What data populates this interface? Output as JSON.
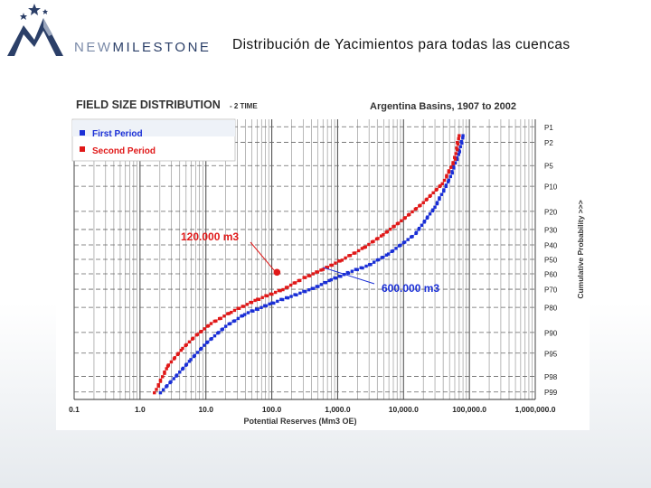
{
  "header": {
    "brand_prefix": "NEW",
    "brand_main": "MILESTONE",
    "slide_title": "Distribución de Yacimientos para todas las cuencas"
  },
  "colors": {
    "first_period": "#1a2fd6",
    "second_period": "#e01818",
    "brand": "#2b3f68"
  },
  "chart_data": {
    "type": "scatter",
    "title": "FIELD SIZE DISTRIBUTION",
    "title_suffix": "- 2 TIME",
    "subtitle": "Argentina Basins, 1907 to 2002",
    "xlabel": "Potential Reserves (Mm3 OE)",
    "ylabel": "Cumulative Probability >>>",
    "x_scale": "log",
    "xlim": [
      0.1,
      1000000
    ],
    "x_tick_labels": [
      "0.1",
      "1.0",
      "10.0",
      "100.0",
      "1,000.0",
      "10,000.0",
      "100,000.0",
      "1,000,000.0"
    ],
    "y_scale": "probability",
    "y_tick_labels": [
      "P1",
      "P2",
      "P5",
      "P10",
      "P20",
      "P30",
      "P40",
      "P50",
      "P60",
      "P70",
      "P80",
      "P90",
      "P95",
      "P98",
      "P99"
    ],
    "y_tick_values": [
      1,
      2,
      5,
      10,
      20,
      30,
      40,
      50,
      60,
      70,
      80,
      90,
      95,
      98,
      99
    ],
    "grid": true,
    "legend_position": "top-left",
    "series": [
      {
        "name": "First Period",
        "points": [
          [
            2.1,
            99
          ],
          [
            3.5,
            98
          ],
          [
            6,
            96
          ],
          [
            10,
            93
          ],
          [
            20,
            88
          ],
          [
            40,
            83
          ],
          [
            100,
            78
          ],
          [
            200,
            74
          ],
          [
            400,
            70
          ],
          [
            800,
            64
          ],
          [
            1500,
            59
          ],
          [
            3000,
            54
          ],
          [
            6000,
            46
          ],
          [
            15000,
            33
          ],
          [
            30000,
            18
          ],
          [
            50000,
            8
          ],
          [
            70000,
            3
          ],
          [
            80000,
            1.5
          ]
        ]
      },
      {
        "name": "Second Period",
        "points": [
          [
            1.7,
            99
          ],
          [
            2.6,
            97
          ],
          [
            4.5,
            94
          ],
          [
            7,
            91
          ],
          [
            12,
            87
          ],
          [
            25,
            82
          ],
          [
            60,
            76
          ],
          [
            150,
            70
          ],
          [
            300,
            63
          ],
          [
            600,
            57
          ],
          [
            1200,
            50
          ],
          [
            2500,
            42
          ],
          [
            5000,
            33
          ],
          [
            10000,
            24
          ],
          [
            20000,
            16
          ],
          [
            40000,
            9
          ],
          [
            60000,
            4
          ],
          [
            70000,
            1.5
          ]
        ]
      }
    ],
    "annotations": [
      {
        "text": "120.000 m3",
        "series": "Second Period",
        "x": 120,
        "y": 59
      },
      {
        "text": "600.000 m3",
        "series": "First Period",
        "x": 600,
        "y": 55
      }
    ]
  }
}
